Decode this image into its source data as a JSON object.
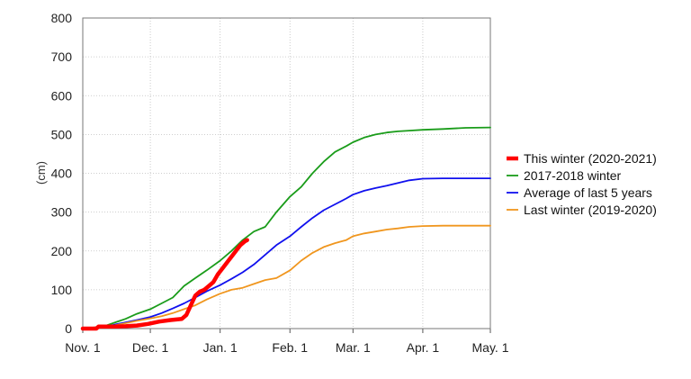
{
  "chart_data": {
    "type": "line",
    "title": "",
    "xlabel": "",
    "ylabel": "(cm)",
    "x_tick_labels": [
      "Nov. 1",
      "Dec. 1",
      "Jan. 1",
      "Feb. 1",
      "Mar. 1",
      "Apr. 1",
      "May. 1"
    ],
    "y_ticks": [
      0,
      100,
      200,
      300,
      400,
      500,
      600,
      700,
      800
    ],
    "ylim": [
      0,
      800
    ],
    "xlim": [
      "2020-11-01",
      "2021-05-01"
    ],
    "grid": true,
    "legend_position": "right",
    "series": [
      {
        "name": "This winter (2020-2021)",
        "color": "#ff0000",
        "x": [
          "2020-11-01",
          "2020-11-07",
          "2020-11-08",
          "2020-11-15",
          "2020-11-20",
          "2020-11-25",
          "2020-11-30",
          "2020-12-05",
          "2020-12-10",
          "2020-12-15",
          "2020-12-17",
          "2020-12-19",
          "2020-12-21",
          "2020-12-23",
          "2020-12-25",
          "2020-12-27",
          "2020-12-29",
          "2020-12-31",
          "2021-01-02",
          "2021-01-04",
          "2021-01-06",
          "2021-01-08",
          "2021-01-10",
          "2021-01-12",
          "2021-01-13"
        ],
        "values": [
          0,
          0,
          5,
          5,
          6,
          8,
          12,
          18,
          22,
          25,
          35,
          60,
          85,
          95,
          100,
          110,
          120,
          140,
          155,
          170,
          185,
          200,
          215,
          225,
          228
        ]
      },
      {
        "name": "2017-2018 winter",
        "color": "#1a9c1a",
        "x": [
          "2020-11-01",
          "2020-11-10",
          "2020-11-15",
          "2020-11-20",
          "2020-11-25",
          "2020-12-01",
          "2020-12-06",
          "2020-12-11",
          "2020-12-16",
          "2020-12-21",
          "2020-12-26",
          "2021-01-01",
          "2021-01-06",
          "2021-01-11",
          "2021-01-16",
          "2021-01-21",
          "2021-01-26",
          "2021-02-01",
          "2021-02-06",
          "2021-02-11",
          "2021-02-16",
          "2021-02-21",
          "2021-02-26",
          "2021-03-01",
          "2021-03-06",
          "2021-03-11",
          "2021-03-16",
          "2021-03-21",
          "2021-03-26",
          "2021-04-01",
          "2021-04-10",
          "2021-04-20",
          "2021-05-01"
        ],
        "values": [
          0,
          5,
          15,
          25,
          38,
          50,
          65,
          80,
          110,
          130,
          150,
          175,
          200,
          228,
          250,
          262,
          300,
          340,
          365,
          400,
          430,
          455,
          470,
          480,
          492,
          500,
          505,
          508,
          510,
          512,
          514,
          517,
          518
        ]
      },
      {
        "name": "Average of last 5 years",
        "color": "#1010ee",
        "x": [
          "2020-11-01",
          "2020-11-10",
          "2020-11-15",
          "2020-11-20",
          "2020-11-25",
          "2020-12-01",
          "2020-12-06",
          "2020-12-11",
          "2020-12-16",
          "2020-12-21",
          "2020-12-26",
          "2021-01-01",
          "2021-01-06",
          "2021-01-11",
          "2021-01-16",
          "2021-01-21",
          "2021-01-26",
          "2021-02-01",
          "2021-02-06",
          "2021-02-11",
          "2021-02-16",
          "2021-02-21",
          "2021-02-26",
          "2021-03-01",
          "2021-03-06",
          "2021-03-11",
          "2021-03-16",
          "2021-03-21",
          "2021-03-26",
          "2021-04-01",
          "2021-04-10",
          "2021-04-20",
          "2021-05-01"
        ],
        "values": [
          0,
          4,
          10,
          16,
          22,
          30,
          40,
          52,
          65,
          80,
          96,
          112,
          128,
          145,
          165,
          190,
          215,
          238,
          262,
          285,
          305,
          320,
          335,
          345,
          355,
          362,
          368,
          375,
          382,
          386,
          387,
          387,
          387
        ]
      },
      {
        "name": "Last winter (2019-2020)",
        "color": "#f0961e",
        "x": [
          "2020-11-01",
          "2020-11-10",
          "2020-11-15",
          "2020-11-20",
          "2020-11-25",
          "2020-12-01",
          "2020-12-06",
          "2020-12-11",
          "2020-12-16",
          "2020-12-21",
          "2020-12-26",
          "2021-01-01",
          "2021-01-06",
          "2021-01-11",
          "2021-01-16",
          "2021-01-21",
          "2021-01-26",
          "2021-02-01",
          "2021-02-06",
          "2021-02-11",
          "2021-02-16",
          "2021-02-21",
          "2021-02-26",
          "2021-03-01",
          "2021-03-06",
          "2021-03-11",
          "2021-03-16",
          "2021-03-21",
          "2021-03-26",
          "2021-04-01",
          "2021-04-10",
          "2021-04-20",
          "2021-05-01"
        ],
        "values": [
          0,
          3,
          8,
          14,
          20,
          26,
          32,
          40,
          50,
          60,
          75,
          90,
          100,
          105,
          115,
          125,
          130,
          150,
          175,
          195,
          210,
          220,
          228,
          238,
          245,
          250,
          255,
          258,
          262,
          264,
          265,
          265,
          265
        ]
      }
    ]
  }
}
